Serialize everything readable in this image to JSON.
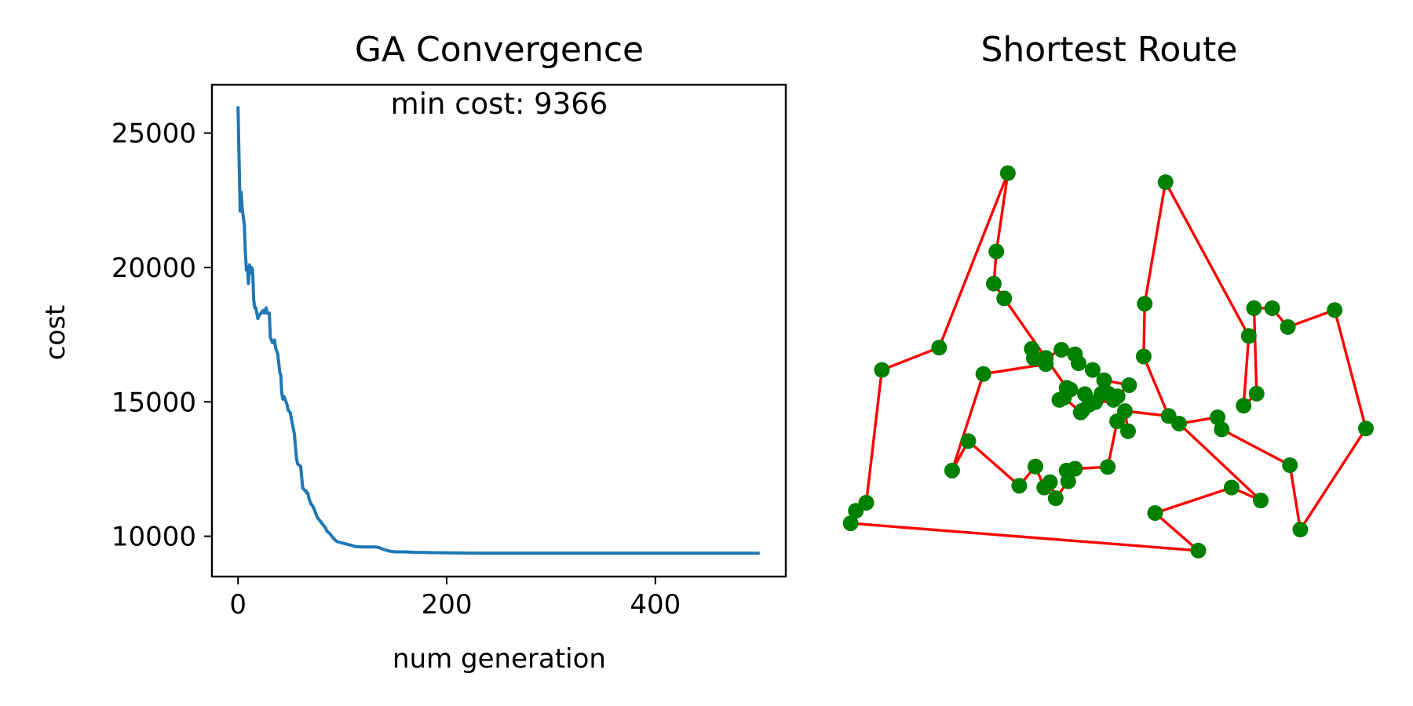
{
  "colors": {
    "convergence_line": "#1f77b4",
    "route_line": "#ff0000",
    "route_points": "#008000",
    "axes": "#000000",
    "background": "#ffffff"
  },
  "chart_data": [
    {
      "type": "line",
      "title": "GA Convergence",
      "annotation": "min cost: 9366",
      "xlabel": "num generation",
      "ylabel": "cost",
      "xlim": [
        -25,
        525
      ],
      "ylim": [
        8500,
        26800
      ],
      "xticks": [
        0,
        200,
        400
      ],
      "xtick_labels": [
        "0",
        "200",
        "400"
      ],
      "yticks": [
        10000,
        15000,
        20000,
        25000
      ],
      "ytick_labels": [
        "10000",
        "15000",
        "20000",
        "25000"
      ],
      "grid": false,
      "series": [
        {
          "x": [
            0,
            2,
            3,
            4,
            6,
            7,
            8,
            9,
            10,
            11,
            12,
            13,
            14,
            15,
            16,
            17,
            18,
            19,
            20,
            22,
            24,
            25,
            27,
            28,
            30,
            31,
            32,
            33,
            34,
            35,
            36,
            38,
            40,
            41,
            42,
            43,
            44,
            47,
            48,
            50,
            51,
            52,
            53,
            54,
            56,
            57,
            60,
            62,
            64,
            65,
            66,
            67,
            68,
            69,
            70,
            72,
            74,
            75,
            76,
            78,
            80,
            84,
            85,
            88,
            90,
            92,
            95,
            100,
            105,
            110,
            112,
            115,
            120,
            125,
            128,
            130,
            132,
            135,
            140,
            145,
            150,
            160,
            170,
            175,
            180,
            185,
            200,
            215,
            225,
            240,
            260,
            280,
            300,
            350,
            400,
            450,
            500
          ],
          "y": [
            26000,
            22100,
            22800,
            22200,
            21600,
            20600,
            19900,
            20000,
            19400,
            20100,
            19800,
            20000,
            19900,
            18800,
            18500,
            18500,
            18300,
            18100,
            18200,
            18300,
            18400,
            18300,
            18500,
            18300,
            18300,
            17400,
            17300,
            17200,
            17200,
            17300,
            17000,
            16800,
            16100,
            16000,
            15300,
            15100,
            15200,
            14900,
            14700,
            14600,
            14400,
            14200,
            14000,
            13800,
            12900,
            12700,
            12600,
            11800,
            11700,
            11700,
            11600,
            11600,
            11400,
            11300,
            11200,
            11100,
            10900,
            10800,
            10700,
            10600,
            10500,
            10300,
            10200,
            10100,
            10000,
            9900,
            9800,
            9750,
            9700,
            9650,
            9620,
            9610,
            9600,
            9600,
            9600,
            9600,
            9600,
            9580,
            9500,
            9450,
            9420,
            9420,
            9400,
            9400,
            9400,
            9390,
            9380,
            9375,
            9372,
            9370,
            9368,
            9368,
            9366,
            9366,
            9366,
            9366,
            9366
          ]
        }
      ]
    },
    {
      "type": "scatter",
      "title": "Shortest Route",
      "axes_visible": false,
      "xlim": [
        0,
        100
      ],
      "ylim": [
        0,
        100
      ],
      "points_closed_route": [
        [
          1,
          6.3
        ],
        [
          2,
          9.1
        ],
        [
          4,
          10.9
        ],
        [
          7,
          40.6
        ],
        [
          18,
          45.6
        ],
        [
          31.2,
          84.6
        ],
        [
          29,
          67.1
        ],
        [
          28.5,
          59.9
        ],
        [
          30.5,
          56.6
        ],
        [
          42.5,
          36.6
        ],
        [
          43.2,
          36.2
        ],
        [
          41.1,
          33.9
        ],
        [
          42,
          34.4
        ],
        [
          45.2,
          31.1
        ],
        [
          46,
          35.2
        ],
        [
          45.5,
          31.5
        ],
        [
          48,
          33.4
        ],
        [
          46.8,
          32.8
        ],
        [
          51.5,
          33.9
        ],
        [
          49.2,
          35.3
        ],
        [
          50.5,
          35.3
        ],
        [
          52.3,
          34.7
        ],
        [
          54.5,
          37.2
        ],
        [
          49.7,
          38.3
        ],
        [
          47.5,
          40.6
        ],
        [
          44.8,
          42.1
        ],
        [
          44.1,
          44.1
        ],
        [
          41.5,
          45.1
        ],
        [
          38.5,
          43.3
        ],
        [
          35.8,
          45.3
        ],
        [
          36.2,
          43.2
        ],
        [
          38.5,
          41.9
        ],
        [
          26.5,
          39.7
        ],
        [
          20.5,
          18.1
        ],
        [
          23.6,
          24.7
        ],
        [
          33.4,
          14.7
        ],
        [
          36.5,
          19.0
        ],
        [
          38.2,
          14.3
        ],
        [
          39.3,
          15.5
        ],
        [
          40.4,
          11.9
        ],
        [
          42.8,
          15.7
        ],
        [
          42.5,
          18.1
        ],
        [
          44.1,
          18.5
        ],
        [
          50.4,
          18.9
        ],
        [
          52.2,
          29.1
        ],
        [
          54.3,
          26.9
        ],
        [
          53.7,
          31.4
        ],
        [
          62.1,
          30.3
        ],
        [
          57.3,
          43.6
        ],
        [
          57.5,
          55.4
        ],
        [
          61.5,
          82.6
        ],
        [
          77.5,
          48.2
        ],
        [
          76.5,
          32.6
        ],
        [
          79,
          35.3
        ],
        [
          78.5,
          54.4
        ],
        [
          82,
          54.4
        ],
        [
          85,
          50.2
        ],
        [
          94,
          54.0
        ],
        [
          100,
          27.5
        ],
        [
          87.4,
          4.9
        ],
        [
          85.4,
          19.3
        ],
        [
          72.3,
          27.3
        ],
        [
          71.5,
          30.0
        ],
        [
          64.1,
          28.6
        ],
        [
          79.8,
          11.4
        ],
        [
          74.2,
          14.3
        ],
        [
          59.5,
          8.6
        ],
        [
          67.8,
          0.2
        ]
      ]
    }
  ]
}
